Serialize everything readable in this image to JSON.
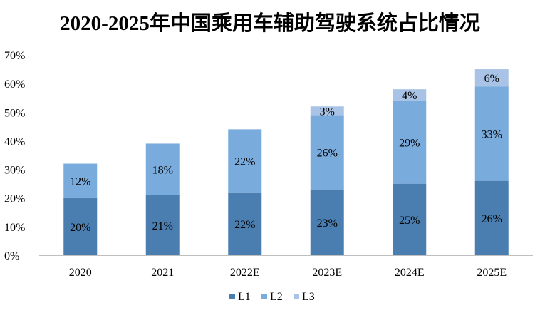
{
  "chart_data": {
    "type": "bar",
    "stacked": true,
    "title": "2020-2025年中国乘用车辅助驾驶系统占比情况",
    "categories": [
      "2020",
      "2021",
      "2022E",
      "2023E",
      "2024E",
      "2025E"
    ],
    "series": [
      {
        "name": "L1",
        "color": "#4a7eb1",
        "values": [
          20,
          21,
          22,
          23,
          25,
          26
        ],
        "labels": [
          "20%",
          "21%",
          "22%",
          "23%",
          "25%",
          "26%"
        ]
      },
      {
        "name": "L2",
        "color": "#7aabdd",
        "values": [
          12,
          18,
          22,
          26,
          29,
          33
        ],
        "labels": [
          "12%",
          "18%",
          "22%",
          "26%",
          "29%",
          "33%"
        ]
      },
      {
        "name": "L3",
        "color": "#a8c3e5",
        "values": [
          0,
          0,
          0,
          3,
          4,
          6
        ],
        "labels": [
          "",
          "",
          "",
          "3%",
          "4%",
          "6%"
        ]
      }
    ],
    "ylim": [
      0,
      70
    ],
    "yticks": [
      "0%",
      "10%",
      "20%",
      "30%",
      "40%",
      "50%",
      "60%",
      "70%"
    ],
    "grid": false,
    "legend_position": "bottom"
  }
}
